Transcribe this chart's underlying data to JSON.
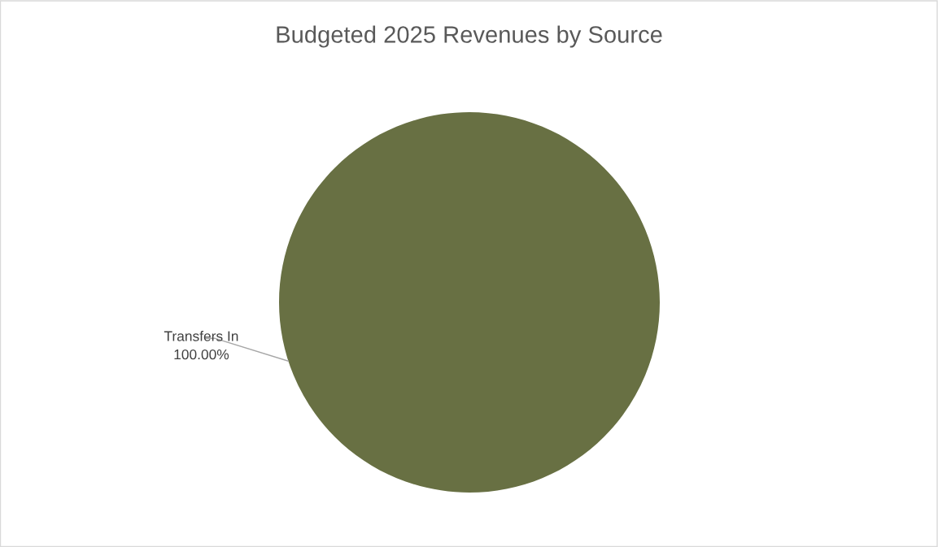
{
  "chart_data": {
    "type": "pie",
    "title": "Budgeted 2025 Revenues by Source",
    "categories": [
      "Transfers In"
    ],
    "values": [
      100
    ],
    "colors": [
      "#687043"
    ],
    "value_labels": [
      "100.00%"
    ]
  }
}
